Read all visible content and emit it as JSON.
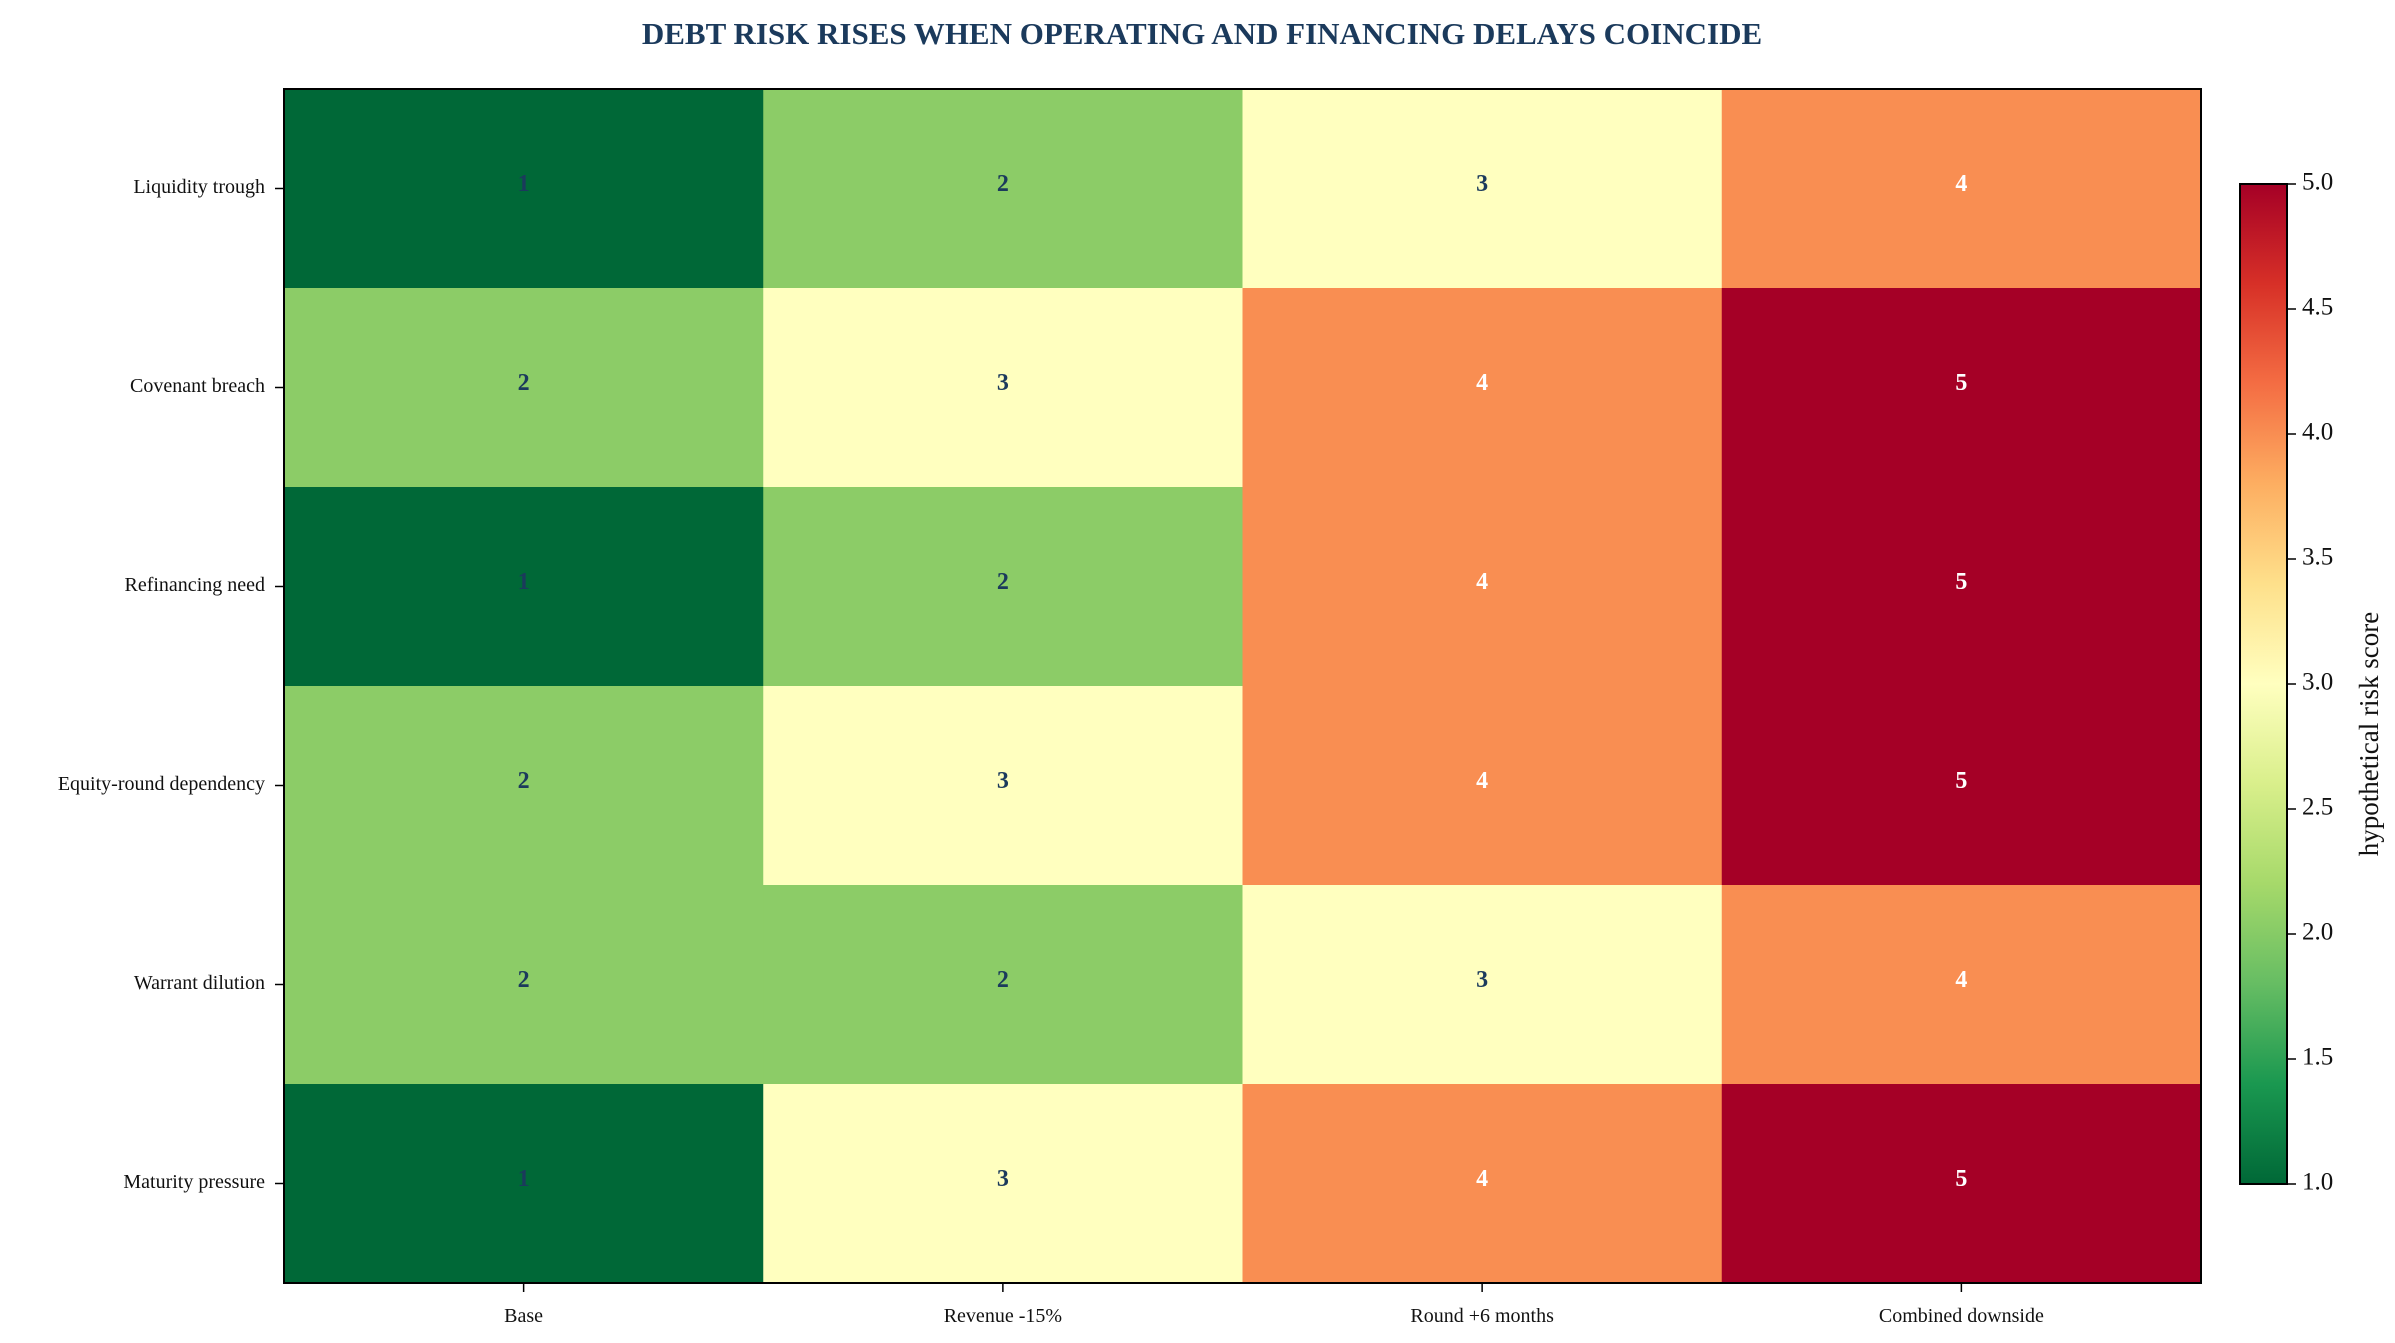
{
  "chart_data": {
    "type": "heatmap",
    "title": "DEBT RISK RISES WHEN OPERATING AND FINANCING DELAYS COINCIDE",
    "columns": [
      "Base",
      "Revenue -15%",
      "Round +6 months",
      "Combined downside"
    ],
    "rows": [
      "Liquidity trough",
      "Covenant breach",
      "Refinancing need",
      "Equity-round dependency",
      "Warrant dilution",
      "Maturity pressure"
    ],
    "values": [
      [
        1,
        2,
        3,
        4
      ],
      [
        2,
        3,
        4,
        5
      ],
      [
        1,
        2,
        4,
        5
      ],
      [
        2,
        3,
        4,
        5
      ],
      [
        2,
        2,
        3,
        4
      ],
      [
        1,
        3,
        4,
        5
      ]
    ],
    "colorbar": {
      "label": "hypothetical risk score",
      "range": [
        1.0,
        5.0
      ],
      "ticks": [
        "1.0",
        "1.5",
        "2.0",
        "2.5",
        "3.0",
        "3.5",
        "4.0",
        "4.5",
        "5.0"
      ],
      "colormap": "RdYlGn_r"
    },
    "colors": {
      "1": "#006837",
      "2": "#8ccc67",
      "3": "#ffffbf",
      "4": "#f98e52",
      "5": "#a50026",
      "title": "#1b3a5c",
      "label_dark": "#1b3a5c",
      "label_light": "#ffffff"
    },
    "grid": false
  }
}
